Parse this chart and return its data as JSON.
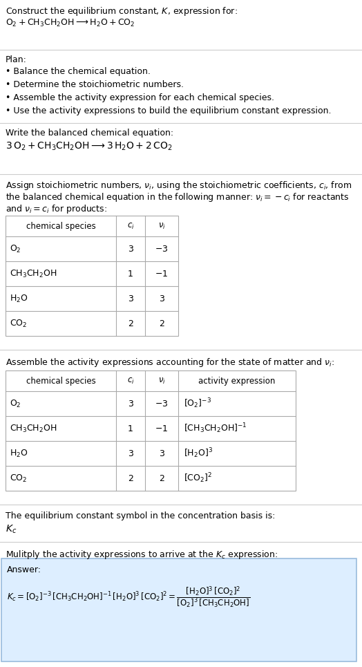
{
  "title_line1": "Construct the equilibrium constant, $K$, expression for:",
  "title_line2": "$\\mathrm{O_2 + CH_3CH_2OH \\longrightarrow H_2O + CO_2}$",
  "plan_header": "Plan:",
  "plan_items": [
    "• Balance the chemical equation.",
    "• Determine the stoichiometric numbers.",
    "• Assemble the activity expression for each chemical species.",
    "• Use the activity expressions to build the equilibrium constant expression."
  ],
  "balanced_header": "Write the balanced chemical equation:",
  "balanced_eq": "$3\\,\\mathrm{O_2 + CH_3CH_2OH \\longrightarrow 3\\,H_2O + 2\\,CO_2}$",
  "stoich_text1": "Assign stoichiometric numbers, $\\nu_i$, using the stoichiometric coefficients, $c_i$, from",
  "stoich_text2": "the balanced chemical equation in the following manner: $\\nu_i = -c_i$ for reactants",
  "stoich_text3": "and $\\nu_i = c_i$ for products:",
  "table1_cols": [
    "chemical species",
    "$c_i$",
    "$\\nu_i$"
  ],
  "table1_rows": [
    [
      "$\\mathrm{O_2}$",
      "3",
      "$-3$"
    ],
    [
      "$\\mathrm{CH_3CH_2OH}$",
      "1",
      "$-1$"
    ],
    [
      "$\\mathrm{H_2O}$",
      "3",
      "3"
    ],
    [
      "$\\mathrm{CO_2}$",
      "2",
      "2"
    ]
  ],
  "activity_header": "Assemble the activity expressions accounting for the state of matter and $\\nu_i$:",
  "table2_cols": [
    "chemical species",
    "$c_i$",
    "$\\nu_i$",
    "activity expression"
  ],
  "table2_rows": [
    [
      "$\\mathrm{O_2}$",
      "3",
      "$-3$",
      "$[\\mathrm{O_2}]^{-3}$"
    ],
    [
      "$\\mathrm{CH_3CH_2OH}$",
      "1",
      "$-1$",
      "$[\\mathrm{CH_3CH_2OH}]^{-1}$"
    ],
    [
      "$\\mathrm{H_2O}$",
      "3",
      "3",
      "$[\\mathrm{H_2O}]^{3}$"
    ],
    [
      "$\\mathrm{CO_2}$",
      "2",
      "2",
      "$[\\mathrm{CO_2}]^{2}$"
    ]
  ],
  "kc_header": "The equilibrium constant symbol in the concentration basis is:",
  "kc_symbol": "$K_c$",
  "multiply_header": "Mulitply the activity expressions to arrive at the $K_c$ expression:",
  "answer_label": "Answer:",
  "answer_eq": "$K_c = [\\mathrm{O_2}]^{-3}\\,[\\mathrm{CH_3CH_2OH}]^{-1}\\,[\\mathrm{H_2O}]^{3}\\,[\\mathrm{CO_2}]^{2} = \\dfrac{[\\mathrm{H_2O}]^{3}\\,[\\mathrm{CO_2}]^{2}}{[\\mathrm{O_2}]^{3}\\,[\\mathrm{CH_3CH_2OH}]}$",
  "bg_color": "#ffffff",
  "text_color": "#000000",
  "table_border_color": "#aaaaaa",
  "answer_bg_color": "#ddeeff",
  "answer_border_color": "#99bbdd",
  "divider_color": "#cccccc",
  "font_size": 9.0,
  "small_font_size": 8.5
}
